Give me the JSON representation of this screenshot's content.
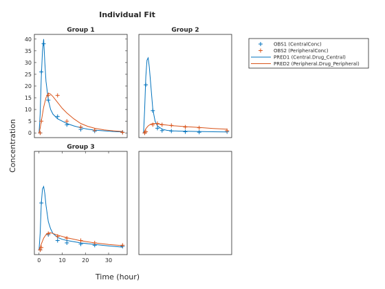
{
  "figure": {
    "title": "Individual Fit",
    "xlabel": "Time (hour)",
    "ylabel": "Concentration"
  },
  "colors": {
    "obs1": "#0072BD",
    "obs2": "#D95319",
    "pred1": "#0072BD",
    "pred2": "#D95319",
    "axis": "#262626"
  },
  "legend": {
    "placement": "right",
    "entries": [
      {
        "label": "OBS1 (CentralConc)",
        "kind": "marker",
        "series": "obs1"
      },
      {
        "label": "OBS2 (PeripheralConc)",
        "kind": "marker",
        "series": "obs2"
      },
      {
        "label": "PRED1 (Central.Drug_Central)",
        "kind": "line",
        "series": "pred1"
      },
      {
        "label": "PRED2 (Peripheral.Drug_Peripheral)",
        "kind": "line",
        "series": "pred2"
      }
    ]
  },
  "chart_data": [
    {
      "type": "line",
      "title": "Group 1",
      "xlim": [
        -2,
        38
      ],
      "ylim": [
        -2,
        42
      ],
      "yticks": [
        0,
        5,
        10,
        15,
        20,
        25,
        30,
        35,
        40
      ],
      "xticks": [],
      "series": [
        {
          "key": "pred1",
          "x": [
            0,
            0.5,
            1,
            1.5,
            2,
            2.5,
            3,
            4,
            5,
            6,
            8,
            10,
            12,
            15,
            18,
            21,
            24,
            28,
            32,
            36
          ],
          "y": [
            0,
            8,
            24,
            35,
            40,
            30,
            22,
            14,
            10,
            8,
            6,
            5,
            4,
            3,
            2.2,
            1.6,
            1.2,
            0.9,
            0.6,
            0.4
          ]
        },
        {
          "key": "obs1",
          "x": [
            0.5,
            1,
            2,
            4,
            8,
            12,
            18,
            24,
            36
          ],
          "y": [
            0,
            26,
            38,
            14,
            7,
            3.5,
            1.5,
            0.8,
            0.3
          ]
        },
        {
          "key": "pred2",
          "x": [
            0,
            0.5,
            1,
            2,
            3,
            4,
            5,
            6,
            8,
            10,
            12,
            15,
            18,
            21,
            24,
            28,
            32,
            36
          ],
          "y": [
            0,
            2,
            5,
            11,
            15,
            17,
            16.5,
            15.5,
            13,
            10.5,
            8.5,
            6,
            4,
            2.8,
            2,
            1.3,
            0.9,
            0.6
          ]
        },
        {
          "key": "obs2",
          "x": [
            0.5,
            1,
            4,
            8,
            12,
            18,
            24,
            36
          ],
          "y": [
            0,
            5,
            16,
            16,
            5,
            2.5,
            1.2,
            0.2
          ]
        }
      ]
    },
    {
      "type": "line",
      "title": "Group 2",
      "xlim": [
        -2,
        38
      ],
      "ylim": [
        -2,
        42
      ],
      "yticks": [],
      "xticks": [],
      "series": [
        {
          "key": "pred1",
          "x": [
            0,
            0.5,
            1,
            1.5,
            2,
            2.5,
            3,
            4,
            5,
            6,
            8,
            10,
            12,
            15,
            18,
            24,
            30,
            36
          ],
          "y": [
            0,
            10,
            24,
            31,
            32,
            28,
            22,
            10,
            5,
            3,
            1.6,
            1.1,
            0.9,
            0.8,
            0.7,
            0.6,
            0.5,
            0.4
          ]
        },
        {
          "key": "obs1",
          "x": [
            0.5,
            1,
            4,
            6,
            8,
            12,
            18,
            24,
            36
          ],
          "y": [
            0,
            20.5,
            9.5,
            2,
            1,
            0.8,
            0.5,
            0.3,
            0.5
          ]
        },
        {
          "key": "pred2",
          "x": [
            0,
            0.5,
            1,
            2,
            3,
            4,
            5,
            6,
            8,
            12,
            18,
            24,
            30,
            36
          ],
          "y": [
            0,
            0.8,
            1.8,
            3,
            3.7,
            4,
            4,
            3.9,
            3.6,
            3.1,
            2.7,
            2.3,
            1.9,
            1.6
          ]
        },
        {
          "key": "obs2",
          "x": [
            0.5,
            1,
            4,
            6,
            8,
            12,
            18,
            24,
            36
          ],
          "y": [
            0,
            0.5,
            3.5,
            4,
            3.5,
            3.2,
            2.5,
            2.2,
            1
          ]
        }
      ]
    },
    {
      "type": "line",
      "title": "Group 3",
      "xlim": [
        -2,
        38
      ],
      "ylim": [
        -2,
        42
      ],
      "yticks": [],
      "xticks": [
        0,
        10,
        20,
        30
      ],
      "series": [
        {
          "key": "pred1",
          "x": [
            0,
            0.5,
            1,
            1.5,
            2,
            2.5,
            3,
            4,
            5,
            6,
            8,
            10,
            12,
            15,
            18,
            24,
            30,
            36
          ],
          "y": [
            0,
            7,
            20,
            26,
            27,
            24,
            19,
            12,
            9,
            7,
            5.3,
            4.5,
            4,
            3.5,
            3,
            2.3,
            1.7,
            1.2
          ]
        },
        {
          "key": "obs1",
          "x": [
            0.5,
            1,
            4,
            8,
            12,
            18,
            24,
            36
          ],
          "y": [
            0,
            20,
            6.5,
            4,
            3,
            2.5,
            2,
            1.5
          ]
        },
        {
          "key": "pred2",
          "x": [
            0,
            0.5,
            1,
            2,
            3,
            4,
            5,
            6,
            8,
            12,
            18,
            24,
            30,
            36
          ],
          "y": [
            0,
            1,
            2.5,
            5,
            6.5,
            7.2,
            7.3,
            7,
            6.3,
            5.2,
            3.9,
            3,
            2.3,
            1.8
          ]
        },
        {
          "key": "obs2",
          "x": [
            0.5,
            1,
            4,
            8,
            12,
            18,
            24,
            36
          ],
          "y": [
            0,
            1,
            7,
            5.8,
            5,
            4,
            3,
            2
          ]
        }
      ]
    },
    {
      "type": "line",
      "title": "",
      "xlim": [
        -2,
        38
      ],
      "ylim": [
        -2,
        42
      ],
      "yticks": [],
      "xticks": [],
      "series": []
    }
  ]
}
